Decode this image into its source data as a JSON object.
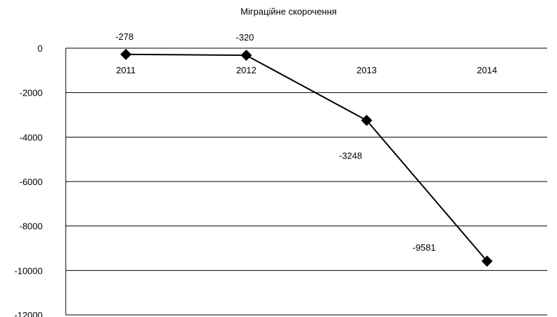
{
  "chart_data": {
    "type": "line",
    "title": "Міграційне скорочення",
    "categories": [
      "2011",
      "2012",
      "2013",
      "2014"
    ],
    "series": [
      {
        "values": [
          -278,
          -320,
          -3248,
          -9581
        ],
        "data_labels": [
          "-278",
          "-320",
          "-3248",
          "-9581"
        ]
      }
    ],
    "ylim": [
      -12000,
      0
    ],
    "y_ticks": [
      "0",
      "-2000",
      "-4000",
      "-6000",
      "-8000",
      "-10000",
      "-12000"
    ],
    "grid": true,
    "legend": "none",
    "colors": {
      "line": "#000000",
      "marker": "#000000",
      "grid": "#000000"
    }
  }
}
